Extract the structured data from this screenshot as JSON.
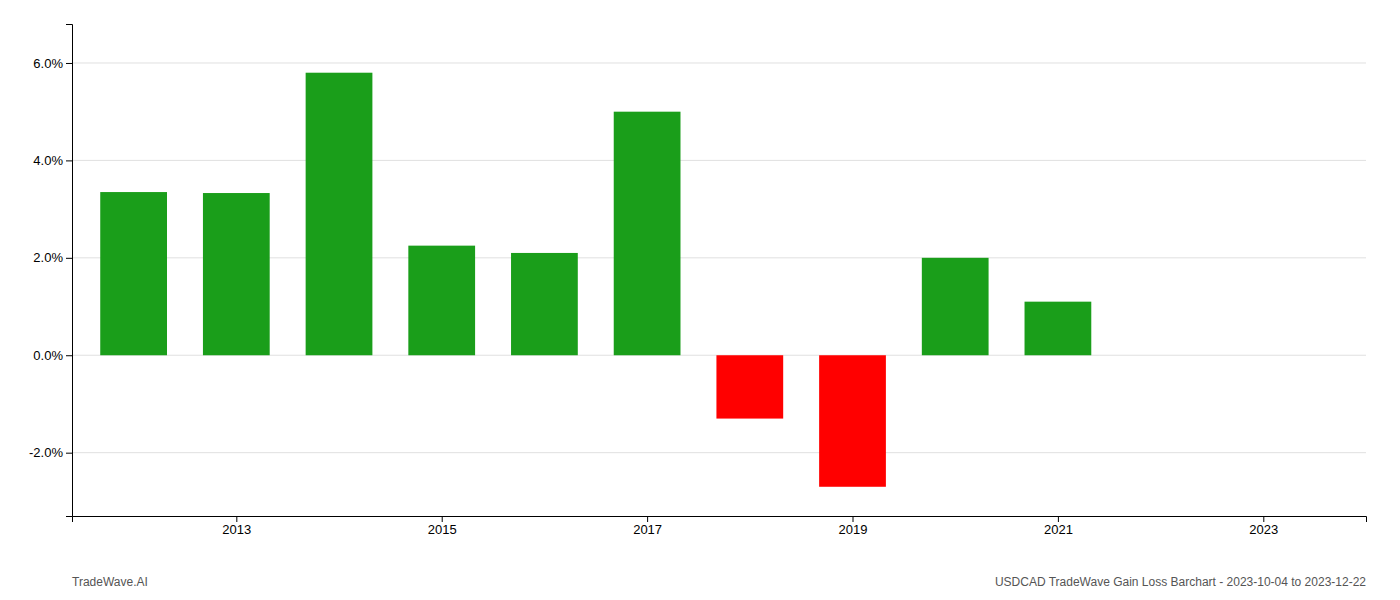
{
  "chart_data": {
    "type": "bar",
    "x": [
      2012,
      2013,
      2014,
      2015,
      2016,
      2017,
      2018,
      2019,
      2020,
      2021
    ],
    "values": [
      0.0335,
      0.0333,
      0.058,
      0.0225,
      0.021,
      0.05,
      -0.013,
      -0.027,
      0.02,
      0.011
    ],
    "colors": [
      "#1a9e1a",
      "#1a9e1a",
      "#1a9e1a",
      "#1a9e1a",
      "#1a9e1a",
      "#1a9e1a",
      "#ff0000",
      "#ff0000",
      "#1a9e1a",
      "#1a9e1a"
    ],
    "xlim": [
      2011.4,
      2024.0
    ],
    "xticks": [
      2013,
      2015,
      2017,
      2019,
      2021,
      2023
    ],
    "ylim": [
      -0.033,
      0.068
    ],
    "yticks": [
      {
        "value": -0.02,
        "label": "-2.0%"
      },
      {
        "value": 0.0,
        "label": "0.0%"
      },
      {
        "value": 0.02,
        "label": "2.0%"
      },
      {
        "value": 0.04,
        "label": "4.0%"
      },
      {
        "value": 0.06,
        "label": "6.0%"
      }
    ],
    "grid": true,
    "annotations": [
      "TradeWave.AI",
      "USDCAD TradeWave Gain Loss Barchart - 2023-10-04 to 2023-12-22"
    ]
  }
}
